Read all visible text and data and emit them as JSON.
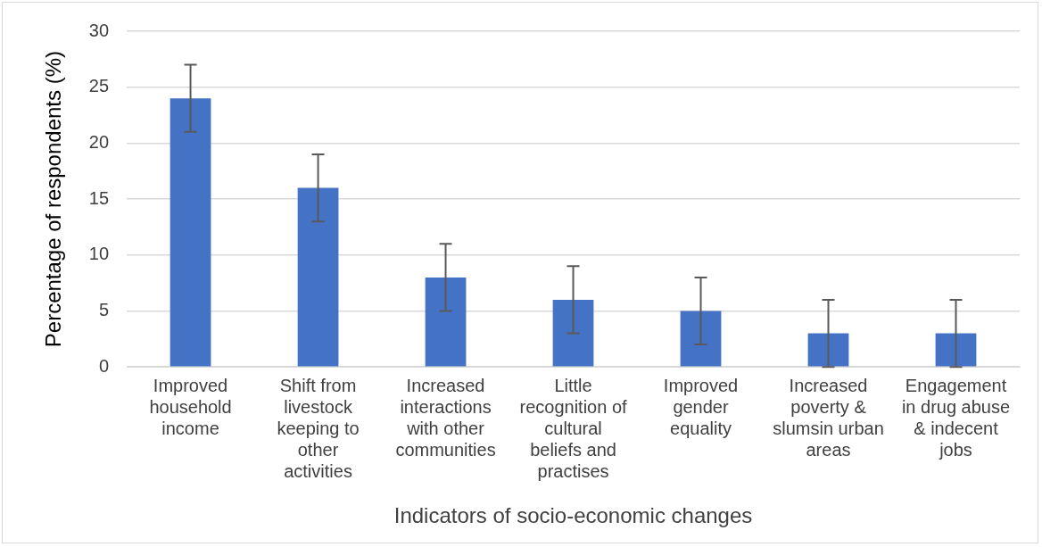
{
  "chart_data": {
    "type": "bar",
    "xlabel": "Indicators of socio-economic changes",
    "ylabel": "Percentage of respondents (%)",
    "categories": [
      "Improved household income",
      "Shift from livestock keeping to other activities",
      "Increased interactions with other communities",
      "Little recognition of cultural beliefs and practises",
      "Improved gender equality",
      "Increased poverty & slumsin urban areas",
      "Engagement in drug abuse & indecent jobs"
    ],
    "values": [
      24,
      16,
      8,
      6,
      5,
      3,
      3
    ],
    "errors": [
      3,
      3,
      3,
      3,
      3,
      3,
      3
    ],
    "color": "#4472c4",
    "ylim": [
      0,
      30
    ],
    "yticks": [
      0,
      5,
      10,
      15,
      20,
      25,
      30
    ],
    "grid": "y",
    "legend": false
  }
}
